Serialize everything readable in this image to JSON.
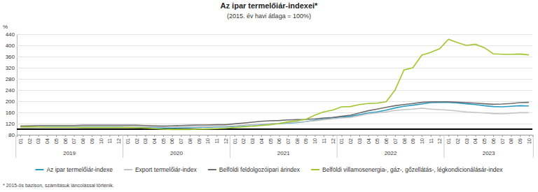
{
  "chart_data": {
    "type": "line",
    "title": "Az ipar termelőiár-indexei*",
    "subtitle": "(2015. év havi átlaga = 100%)",
    "y_label": "%",
    "footnote": "* 2015-ös bázison, számításuk láncolással történik.",
    "categories": [
      "01",
      "02",
      "03",
      "04",
      "05",
      "06",
      "07",
      "08",
      "09",
      "10",
      "11",
      "12",
      "01",
      "02",
      "03",
      "04",
      "05",
      "06",
      "07",
      "08",
      "09",
      "10",
      "11",
      "12",
      "01",
      "02",
      "03",
      "04",
      "05",
      "06",
      "07",
      "08",
      "09",
      "10",
      "11",
      "12",
      "01",
      "02",
      "03",
      "04",
      "05",
      "06",
      "07",
      "08",
      "09",
      "10",
      "11",
      "12",
      "01",
      "02",
      "03",
      "04",
      "05",
      "06",
      "07",
      "08",
      "09",
      "10"
    ],
    "groups": [
      {
        "label": "2019",
        "count": 12
      },
      {
        "label": "2020",
        "count": 12
      },
      {
        "label": "2021",
        "count": 12
      },
      {
        "label": "2022",
        "count": 12
      },
      {
        "label": "2023",
        "count": 10
      }
    ],
    "series": [
      {
        "name": "Az ipar termelőiár-indexe",
        "color": "#2b9cc4",
        "values": [
          107,
          108,
          108,
          108,
          108,
          108,
          108,
          108,
          108,
          108,
          108,
          108,
          108,
          107,
          106,
          105,
          104,
          104,
          105,
          106,
          107,
          107,
          108,
          108,
          110,
          112,
          115,
          117,
          118,
          120,
          122,
          124,
          127,
          132,
          137,
          141,
          144,
          146,
          152,
          158,
          162,
          168,
          176,
          182,
          186,
          190,
          195,
          196,
          196,
          194,
          191,
          188,
          184,
          181,
          180,
          182,
          184,
          183
        ]
      },
      {
        "name": "Export termelőiár-index",
        "color": "#c4c4c4",
        "values": [
          106,
          106,
          107,
          107,
          107,
          107,
          107,
          107,
          107,
          107,
          107,
          107,
          108,
          108,
          108,
          108,
          107,
          107,
          108,
          108,
          109,
          109,
          110,
          110,
          112,
          114,
          116,
          118,
          120,
          121,
          123,
          125,
          127,
          130,
          134,
          137,
          140,
          142,
          148,
          155,
          158,
          162,
          167,
          170,
          172,
          175,
          172,
          170,
          168,
          165,
          162,
          160,
          158,
          156,
          155,
          157,
          159,
          159
        ]
      },
      {
        "name": "Belföldi feldolgozóipari árindex",
        "color": "#6e6e6e",
        "values": [
          111,
          112,
          113,
          113,
          113,
          113,
          113,
          114,
          114,
          114,
          114,
          114,
          114,
          114,
          113,
          112,
          111,
          112,
          113,
          114,
          115,
          115,
          116,
          116,
          119,
          122,
          125,
          128,
          130,
          131,
          133,
          134,
          135,
          137,
          140,
          142,
          146,
          150,
          158,
          166,
          172,
          178,
          184,
          188,
          192,
          196,
          198,
          198,
          198,
          197,
          195,
          193,
          191,
          189,
          190,
          192,
          195,
          196
        ]
      },
      {
        "name": "Belföldi villamosenergia-, gáz-, gőzellátás-, légkondicionálásár-index",
        "color": "#a2c62f",
        "values": [
          108,
          108,
          108,
          107,
          107,
          107,
          107,
          106,
          106,
          106,
          106,
          106,
          106,
          105,
          104,
          102,
          100,
          99,
          99,
          99,
          100,
          101,
          102,
          103,
          106,
          108,
          110,
          113,
          116,
          120,
          126,
          130,
          135,
          150,
          162,
          168,
          180,
          181,
          188,
          192,
          193,
          198,
          240,
          312,
          320,
          365,
          375,
          388,
          422,
          410,
          400,
          404,
          392,
          370,
          368,
          368,
          369,
          366
        ]
      }
    ],
    "ylim": [
      80,
      440
    ],
    "yticks": [
      80,
      120,
      160,
      200,
      240,
      280,
      320,
      360,
      400,
      440
    ],
    "reference_line": 100,
    "grid": true,
    "legend": "bottom"
  }
}
